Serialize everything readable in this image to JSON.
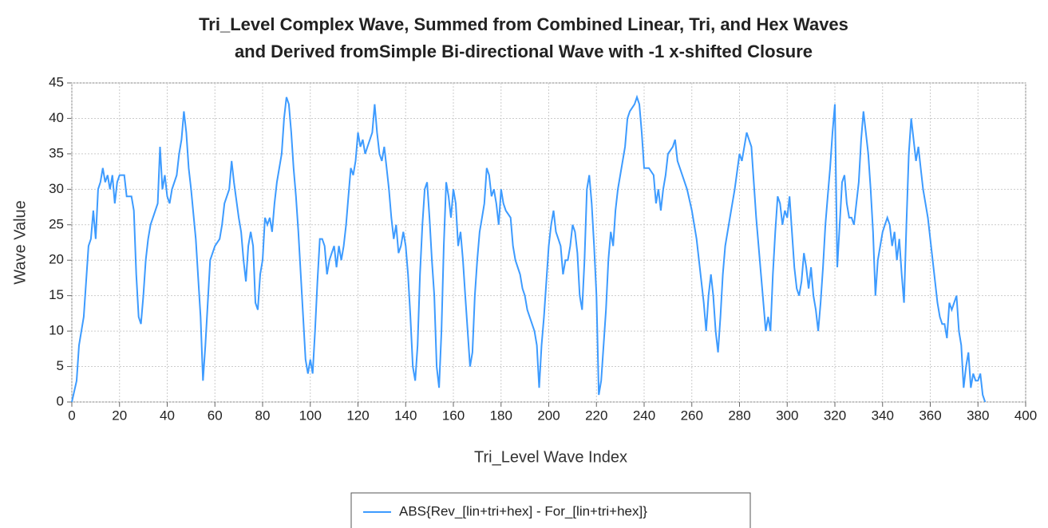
{
  "chart_data": {
    "type": "line",
    "title": [
      "Tri_Level Complex Wave, Summed from Combined Linear, Tri, and Hex Waves",
      "and Derived fromSimple Bi-directional Wave with -1 x-shifted Closure"
    ],
    "x_label": "Tri_Level Wave Index",
    "y_label": "Wave Value",
    "xlim": [
      0,
      400
    ],
    "ylim": [
      0,
      45
    ],
    "xticks": [
      0,
      20,
      40,
      60,
      80,
      100,
      120,
      140,
      160,
      180,
      200,
      220,
      240,
      260,
      280,
      300,
      320,
      340,
      360,
      380,
      400
    ],
    "yticks": [
      0,
      5,
      10,
      15,
      20,
      25,
      30,
      35,
      40,
      45
    ],
    "grid": true,
    "legend": "bottom",
    "x": [
      0,
      2,
      3,
      5,
      7,
      8,
      9,
      10,
      11,
      12,
      13,
      14,
      15,
      16,
      17,
      18,
      19,
      20,
      22,
      23,
      25,
      26,
      27,
      28,
      29,
      30,
      31,
      32,
      33,
      34,
      36,
      37,
      38,
      39,
      40,
      41,
      42,
      44,
      45,
      46,
      47,
      48,
      49,
      50,
      52,
      54,
      55,
      56,
      57,
      58,
      60,
      62,
      63,
      64,
      66,
      67,
      68,
      70,
      71,
      72,
      73,
      74,
      75,
      76,
      77,
      78,
      79,
      80,
      81,
      82,
      83,
      84,
      85,
      86,
      87,
      88,
      89,
      90,
      91,
      92,
      93,
      94,
      95,
      96,
      97,
      98,
      99,
      100,
      101,
      102,
      103,
      104,
      105,
      106,
      107,
      108,
      109,
      110,
      111,
      112,
      113,
      114,
      115,
      116,
      117,
      118,
      119,
      120,
      121,
      122,
      123,
      124,
      126,
      127,
      128,
      129,
      130,
      131,
      132,
      133,
      134,
      135,
      136,
      137,
      138,
      139,
      140,
      141,
      142,
      143,
      144,
      145,
      146,
      147,
      148,
      149,
      150,
      151,
      152,
      153,
      154,
      155,
      156,
      157,
      158,
      159,
      160,
      161,
      162,
      163,
      164,
      165,
      166,
      167,
      168,
      169,
      170,
      171,
      172,
      173,
      174,
      175,
      176,
      177,
      178,
      179,
      180,
      181,
      182,
      184,
      185,
      186,
      188,
      189,
      190,
      191,
      192,
      193,
      194,
      195,
      196,
      197,
      198,
      199,
      200,
      201,
      202,
      203,
      204,
      205,
      206,
      207,
      208,
      209,
      210,
      211,
      212,
      213,
      214,
      215,
      216,
      217,
      218,
      219,
      220,
      221,
      222,
      223,
      224,
      225,
      226,
      227,
      228,
      229,
      230,
      231,
      232,
      233,
      234,
      236,
      237,
      238,
      239,
      240,
      242,
      244,
      245,
      246,
      247,
      248,
      249,
      250,
      252,
      253,
      254,
      256,
      258,
      260,
      262,
      263,
      264,
      265,
      266,
      267,
      268,
      269,
      270,
      271,
      272,
      273,
      274,
      276,
      278,
      280,
      281,
      282,
      283,
      284,
      285,
      286,
      287,
      288,
      289,
      290,
      291,
      292,
      293,
      294,
      295,
      296,
      297,
      298,
      299,
      300,
      301,
      302,
      303,
      304,
      305,
      306,
      307,
      308,
      309,
      310,
      311,
      312,
      313,
      314,
      315,
      316,
      317,
      318,
      319,
      320,
      321,
      322,
      323,
      324,
      325,
      326,
      327,
      328,
      329,
      330,
      331,
      332,
      333,
      334,
      335,
      336,
      337,
      338,
      339,
      340,
      341,
      342,
      343,
      344,
      345,
      346,
      347,
      348,
      349,
      350,
      351,
      352,
      353,
      354,
      355,
      356,
      357,
      358,
      359,
      360,
      361,
      362,
      363,
      364,
      365,
      366,
      367,
      368,
      369,
      370,
      371,
      372,
      373,
      374,
      375,
      376,
      377,
      378,
      379,
      380,
      381,
      382,
      383
    ],
    "series": [
      {
        "name": "ABS{Rev_[lin+tri+hex] - For_[lin+tri+hex]}",
        "color": "#3d9bff",
        "values": [
          0,
          3,
          8,
          12,
          22,
          23,
          27,
          23,
          30,
          31,
          33,
          31,
          32,
          30,
          32,
          28,
          31,
          32,
          32,
          29,
          29,
          27,
          18,
          12,
          11,
          15,
          20,
          23,
          25,
          26,
          28,
          36,
          30,
          32,
          29,
          28,
          30,
          32,
          35,
          37,
          41,
          38,
          33,
          30,
          23,
          12,
          3,
          8,
          14,
          20,
          22,
          23,
          25,
          28,
          30,
          34,
          31,
          26,
          24,
          20,
          17,
          22,
          24,
          22,
          14,
          13,
          18,
          20,
          26,
          25,
          26,
          24,
          28,
          31,
          33,
          35,
          40,
          43,
          42,
          38,
          33,
          29,
          24,
          18,
          12,
          6,
          4,
          6,
          4,
          10,
          17,
          23,
          23,
          22,
          18,
          20,
          21,
          22,
          19,
          22,
          20,
          22,
          25,
          29,
          33,
          32,
          34,
          38,
          36,
          37,
          35,
          36,
          38,
          42,
          38,
          35,
          34,
          36,
          33,
          30,
          26,
          23,
          25,
          21,
          22,
          24,
          22,
          18,
          12,
          5,
          3,
          8,
          18,
          25,
          30,
          31,
          26,
          20,
          15,
          5,
          2,
          10,
          22,
          31,
          29,
          26,
          30,
          28,
          22,
          24,
          20,
          15,
          10,
          5,
          7,
          15,
          20,
          24,
          26,
          28,
          33,
          32,
          29,
          30,
          28,
          25,
          30,
          28,
          27,
          26,
          22,
          20,
          18,
          16,
          15,
          13,
          12,
          11,
          10,
          8,
          2,
          8,
          12,
          17,
          22,
          25,
          27,
          24,
          23,
          22,
          18,
          20,
          20,
          22,
          25,
          24,
          21,
          15,
          13,
          20,
          30,
          32,
          28,
          22,
          15,
          1,
          3,
          8,
          13,
          20,
          24,
          22,
          27,
          30,
          32,
          34,
          36,
          40,
          41,
          42,
          43,
          42,
          38,
          33,
          33,
          32,
          28,
          30,
          27,
          30,
          32,
          35,
          36,
          37,
          34,
          32,
          30,
          27,
          23,
          20,
          17,
          14,
          10,
          15,
          18,
          15,
          10,
          7,
          12,
          18,
          22,
          26,
          30,
          35,
          34,
          36,
          38,
          37,
          36,
          31,
          26,
          22,
          18,
          14,
          10,
          12,
          10,
          18,
          24,
          29,
          28,
          25,
          27,
          26,
          29,
          24,
          19,
          16,
          15,
          17,
          21,
          19,
          16,
          19,
          15,
          13,
          10,
          14,
          19,
          25,
          29,
          33,
          38,
          42,
          19,
          25,
          31,
          32,
          28,
          26,
          26,
          25,
          28,
          31,
          37,
          41,
          38,
          35,
          30,
          24,
          15,
          20,
          22,
          24,
          25,
          26,
          25,
          22,
          24,
          20,
          23,
          18,
          14,
          25,
          35,
          40,
          37,
          34,
          36,
          33,
          30,
          28,
          26,
          23,
          20,
          17,
          14,
          12,
          11,
          11,
          9,
          14,
          13,
          14,
          15,
          10,
          8,
          2,
          5,
          7,
          2,
          4,
          3,
          3,
          4,
          1,
          0
        ]
      }
    ]
  }
}
